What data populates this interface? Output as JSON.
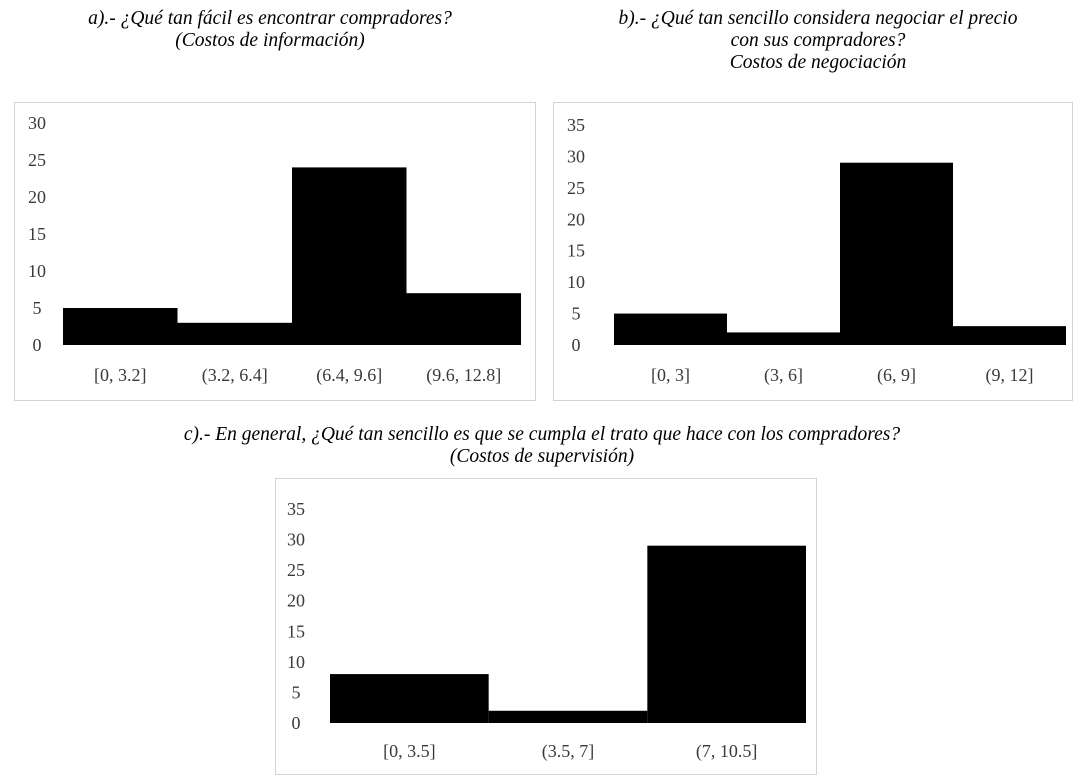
{
  "charts": [
    {
      "title_lines": [
        "a).- ¿Qué tan fácil es encontrar compradores?",
        "(Costos de información)"
      ]
    },
    {
      "title_lines": [
        "b).- ¿Qué tan sencillo considera negociar el precio",
        "con sus compradores?",
        "Costos de negociación"
      ]
    },
    {
      "title_lines": [
        "c).- En general, ¿Qué tan sencillo es que se cumpla el trato que hace con los compradores?",
        "(Costos de supervisión)"
      ]
    }
  ],
  "chart_data": [
    {
      "type": "bar",
      "categories": [
        "[0, 3.2]",
        "(3.2, 6.4]",
        "(6.4, 9.6]",
        "(9.6, 12.8]"
      ],
      "values": [
        5,
        3,
        24,
        7
      ],
      "title": "a).- ¿Qué tan fácil es encontrar compradores? (Costos de información)",
      "ylim": [
        0,
        30
      ],
      "yticks": [
        0,
        5,
        10,
        15,
        20,
        25,
        30
      ],
      "grid": false,
      "color": "#000000"
    },
    {
      "type": "bar",
      "categories": [
        "[0, 3]",
        "(3, 6]",
        "(6, 9]",
        "(9, 12]"
      ],
      "values": [
        5,
        2,
        29,
        3
      ],
      "title": "b).- ¿Qué tan sencillo considera negociar el precio con sus compradores? Costos de negociación",
      "ylim": [
        0,
        35
      ],
      "yticks": [
        0,
        5,
        10,
        15,
        20,
        25,
        30,
        35
      ],
      "grid": false,
      "color": "#000000"
    },
    {
      "type": "bar",
      "categories": [
        "[0, 3.5]",
        "(3.5, 7]",
        "(7, 10.5]"
      ],
      "values": [
        8,
        2,
        29
      ],
      "title": "c).- En general, ¿Qué tan sencillo es que se cumpla el trato que hace con los compradores? (Costos de supervisión)",
      "ylim": [
        0,
        35
      ],
      "yticks": [
        0,
        5,
        10,
        15,
        20,
        25,
        30,
        35
      ],
      "grid": false,
      "color": "#000000"
    }
  ]
}
